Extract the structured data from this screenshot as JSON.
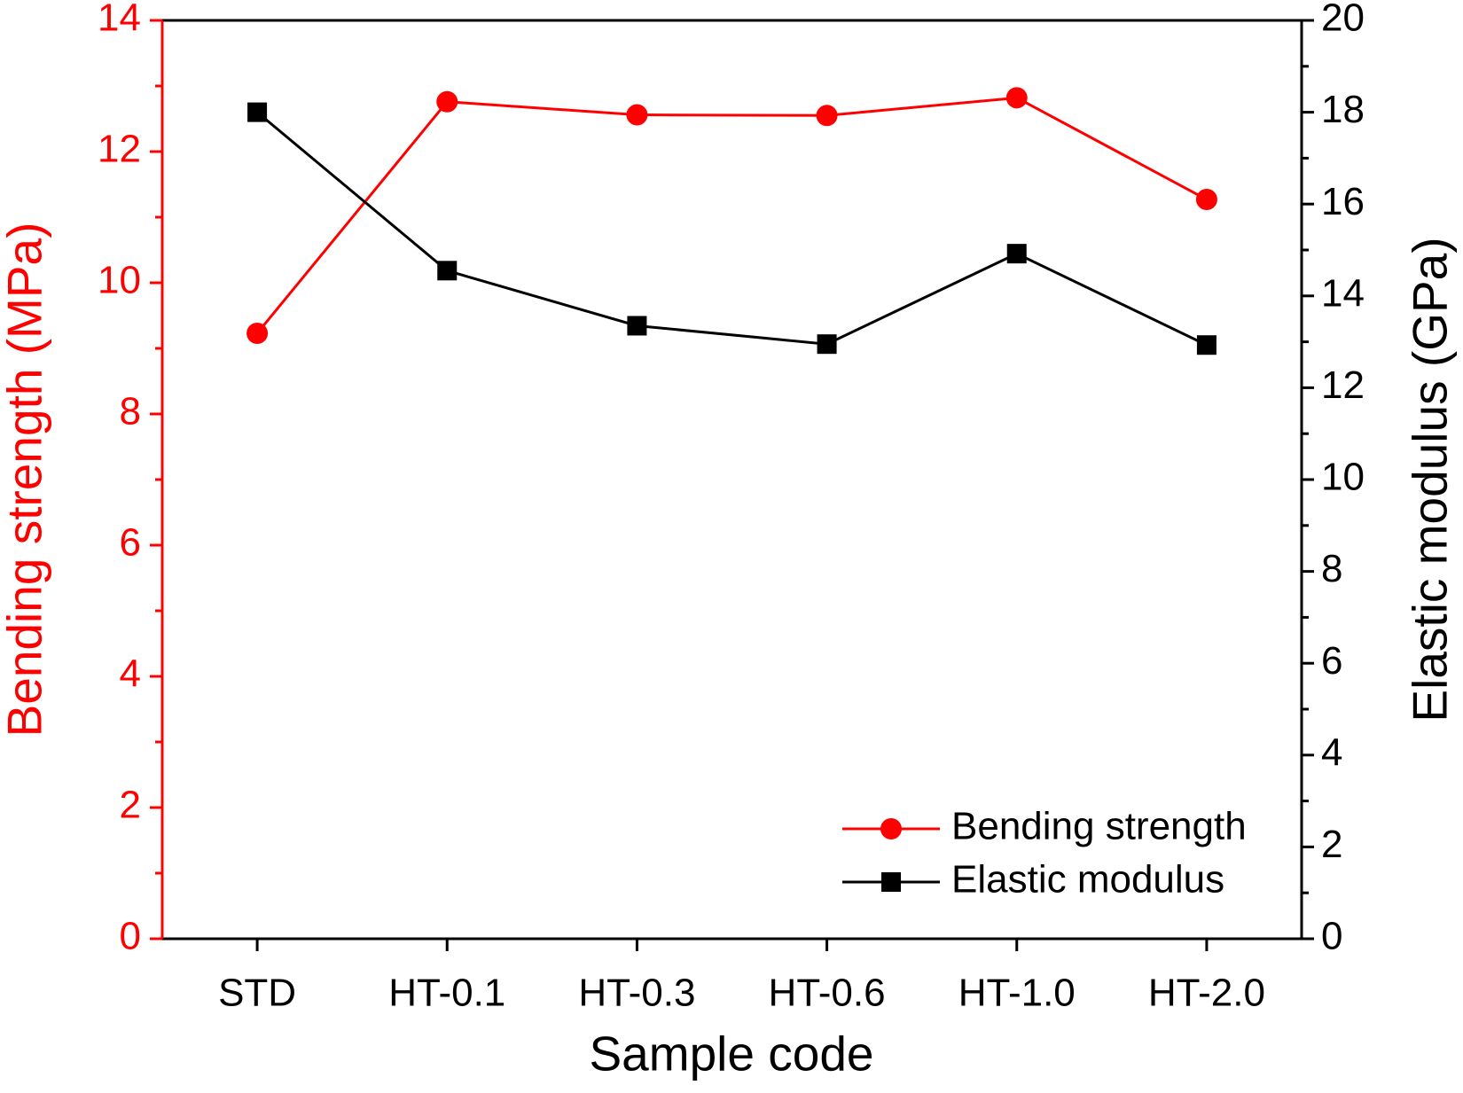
{
  "chart_data": {
    "type": "line",
    "x_label": "Sample code",
    "y_label": "Bending strength (MPa)",
    "y2_label": "Elastic modulus (GPa)",
    "categories": [
      "STD",
      "HT-0.1",
      "HT-0.3",
      "HT-0.6",
      "HT-1.0",
      "HT-2.0"
    ],
    "ylim": [
      0,
      14
    ],
    "yticks": [
      0,
      2,
      4,
      6,
      8,
      10,
      12,
      14
    ],
    "y2lim": [
      0,
      20
    ],
    "y2ticks": [
      0,
      2,
      4,
      6,
      8,
      10,
      12,
      14,
      16,
      18,
      20
    ],
    "legend": "lower right",
    "series": [
      {
        "name": "Bending strength",
        "color": "#ff0000",
        "marker": "circle",
        "values": [
          9.23,
          12.76,
          12.56,
          12.55,
          12.82,
          11.27
        ]
      },
      {
        "name": "Elastic modulus",
        "color": "#000000",
        "marker": "square",
        "axis": "y2",
        "values": [
          18.0,
          14.55,
          13.35,
          12.95,
          14.92,
          12.93
        ]
      }
    ]
  }
}
